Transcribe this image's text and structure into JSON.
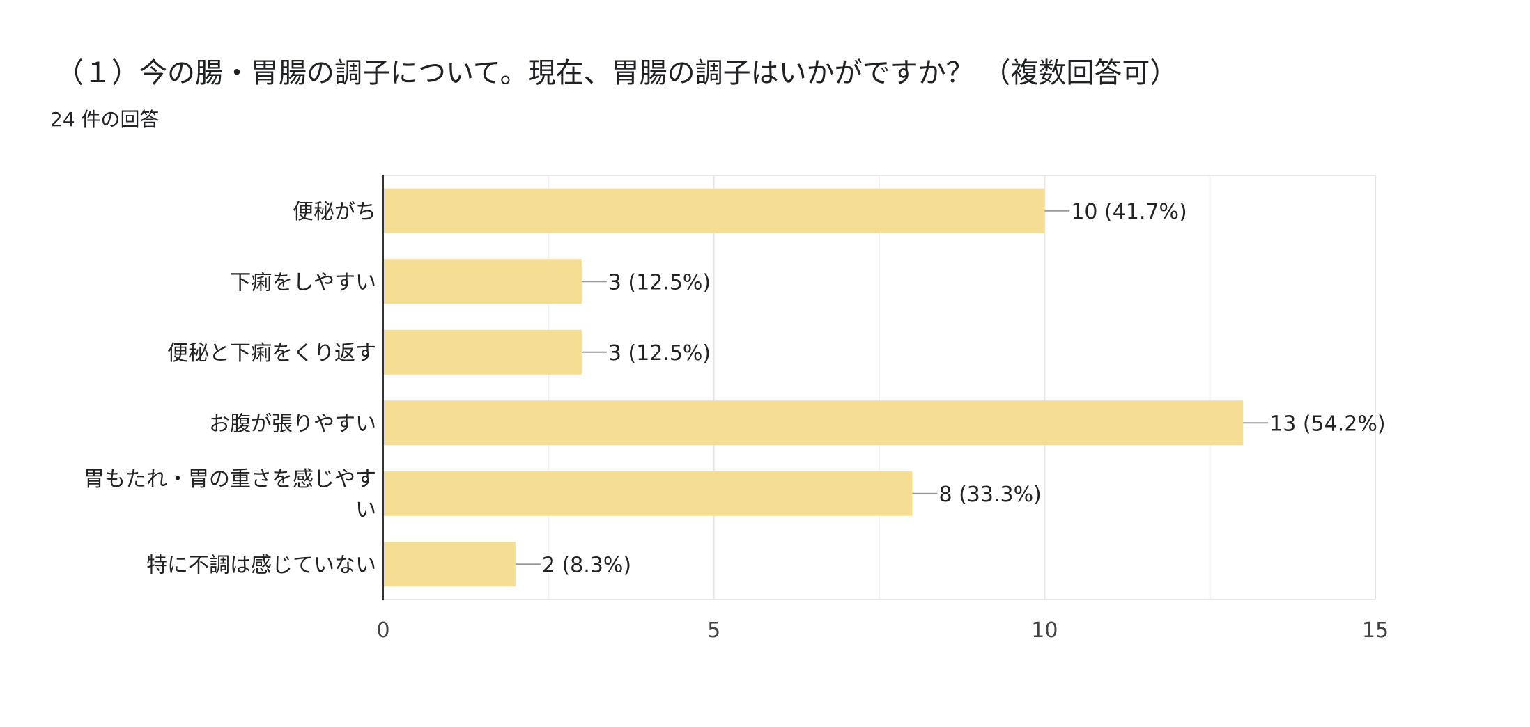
{
  "title": "（１）今の腸・胃腸の調子について。現在、胃腸の調子はいかがですか？ （複数回答可）",
  "subtitle": "24 件の回答",
  "chart_data": {
    "type": "bar",
    "orientation": "horizontal",
    "categories": [
      [
        "便秘がち"
      ],
      [
        "下痢をしやすい"
      ],
      [
        "便秘と下痢をくり返す"
      ],
      [
        "お腹が張りやすい"
      ],
      [
        "胃もたれ・胃の重さを感じやす",
        "い"
      ],
      [
        "特に不調は感じていない"
      ]
    ],
    "values": [
      10,
      3,
      3,
      13,
      8,
      2
    ],
    "data_labels": [
      "10 (41.7%)",
      "3 (12.5%)",
      "3 (12.5%)",
      "13 (54.2%)",
      "8 (33.3%)",
      "2 (8.3%)"
    ],
    "xlim": [
      0,
      15
    ],
    "xticks": [
      "0",
      "5",
      "10",
      "15"
    ],
    "grid": true,
    "bar_color": "#f5dd93"
  }
}
